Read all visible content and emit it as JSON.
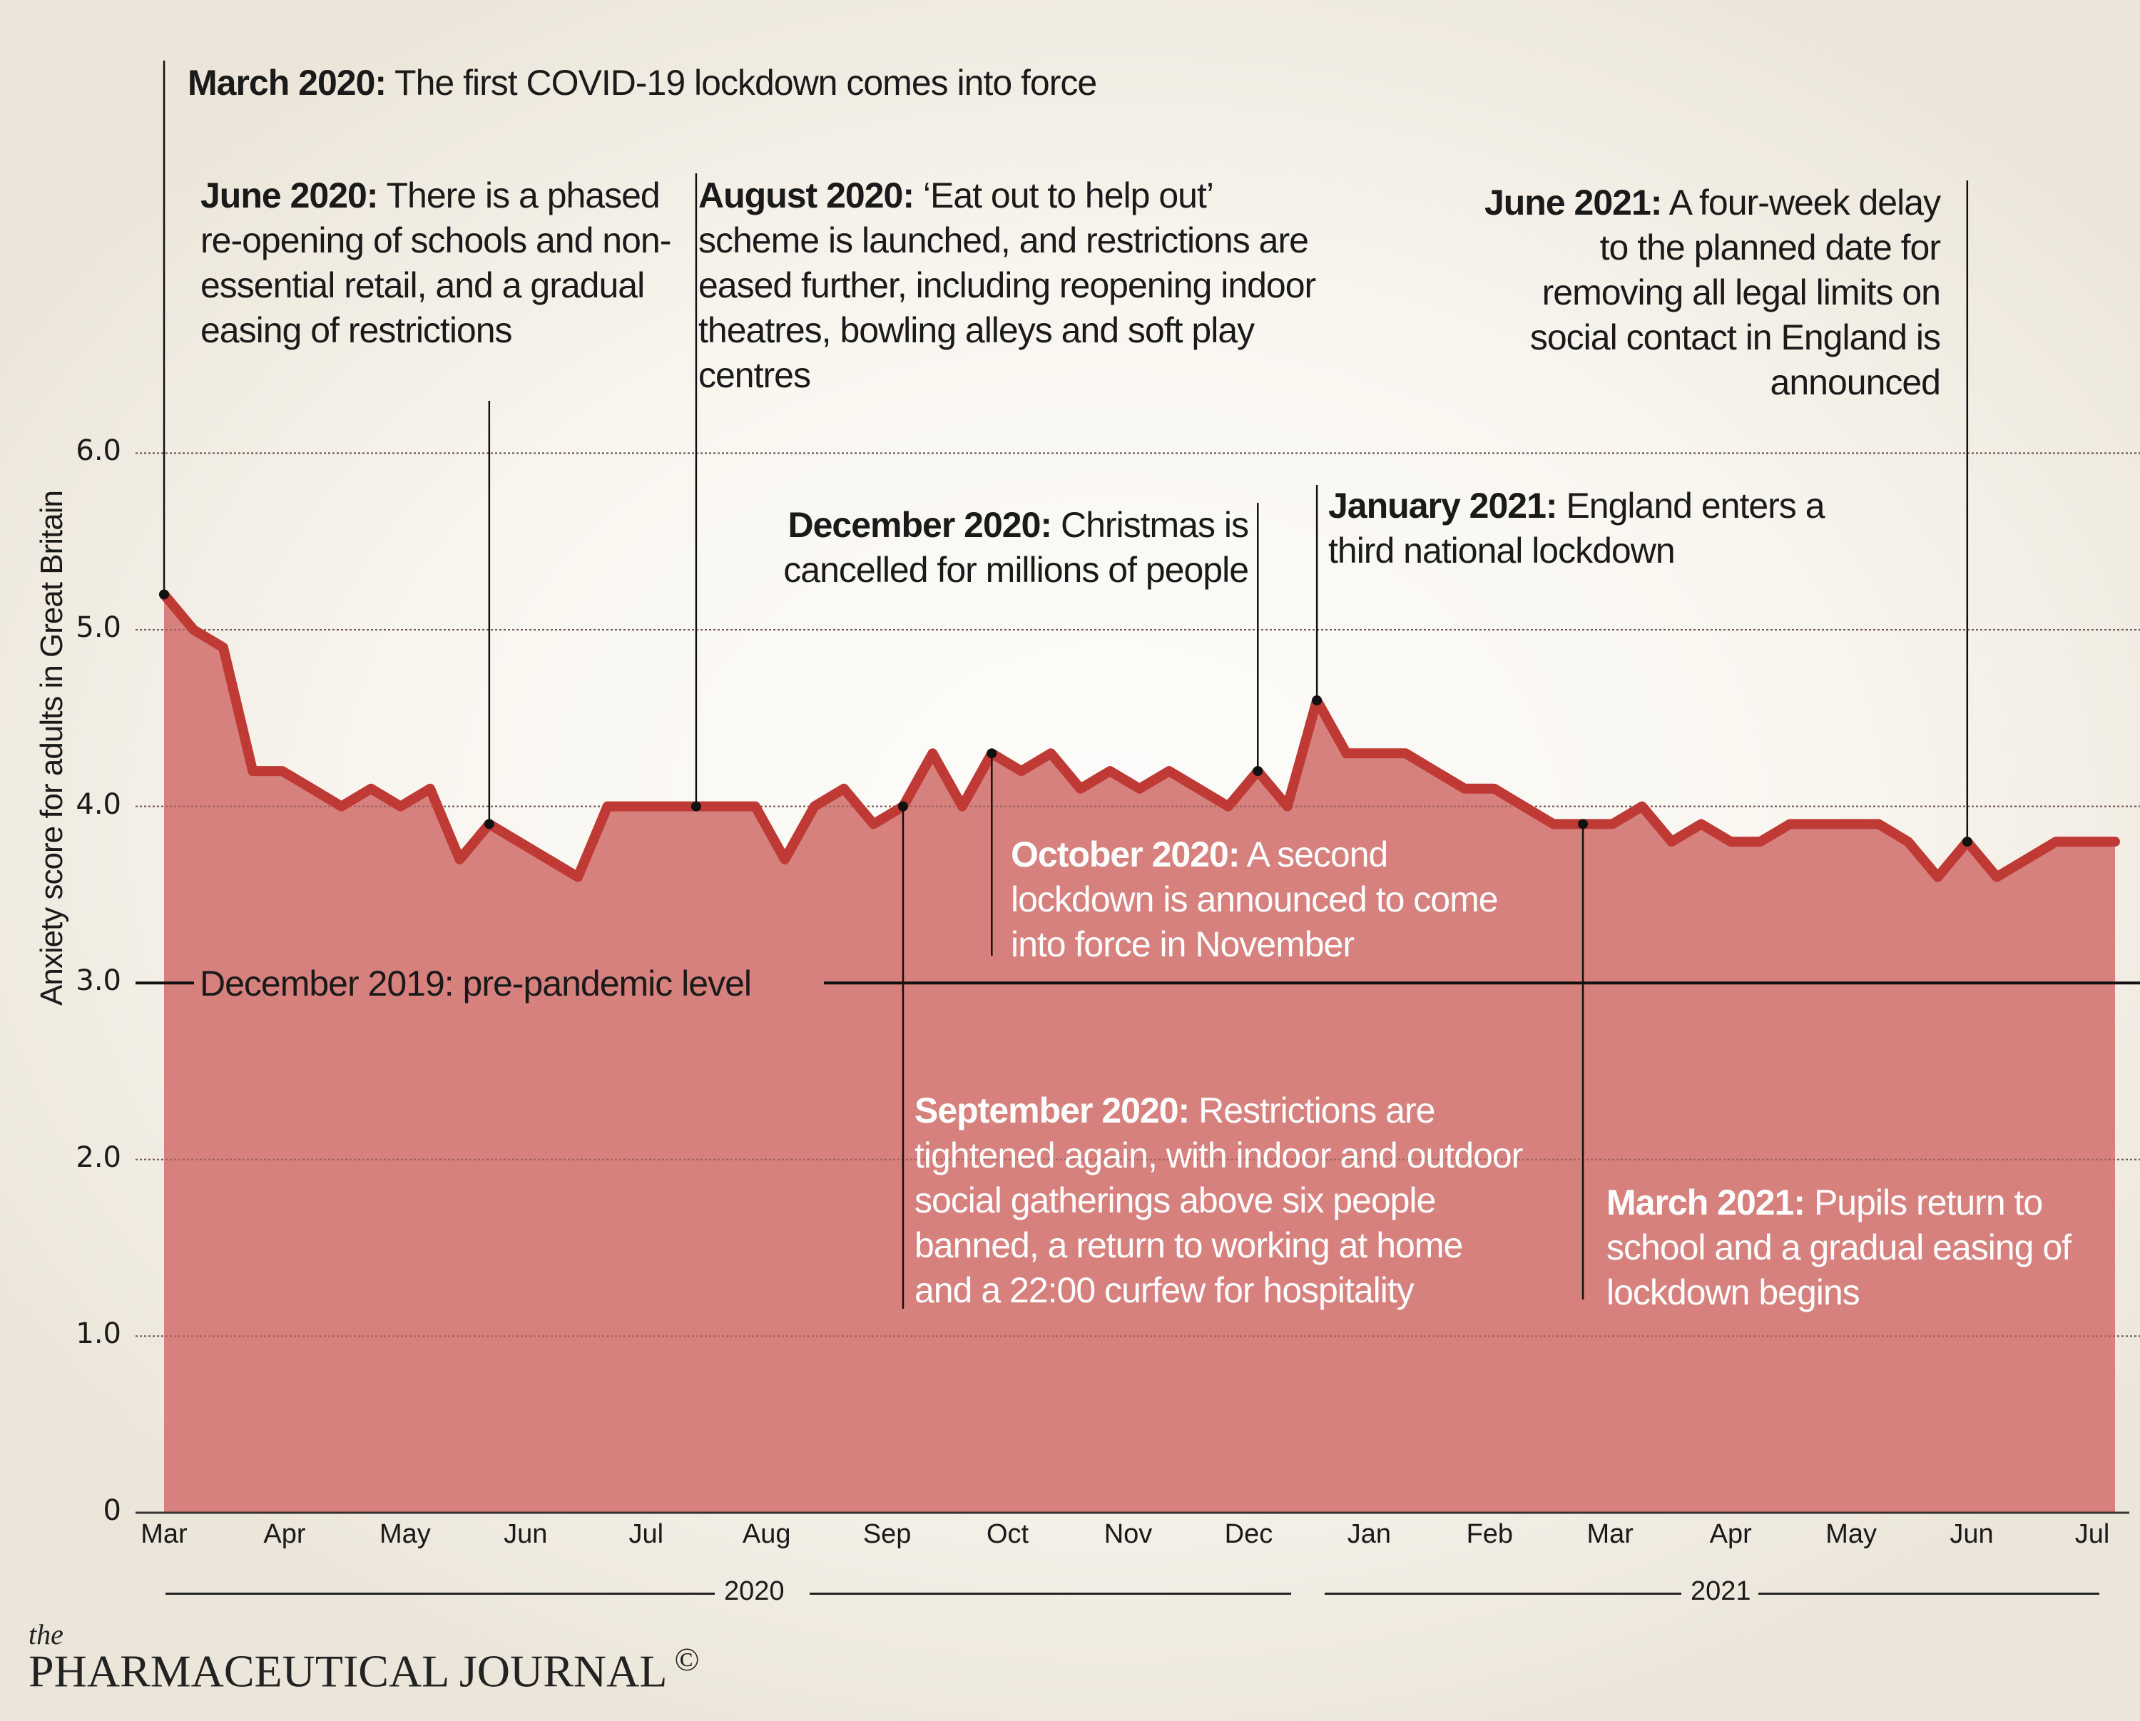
{
  "chart_data": {
    "type": "area",
    "title": "",
    "ylabel": "Anxiety score for adults in Great Britain",
    "xlabel": "",
    "ylim": [
      0,
      6.0
    ],
    "yticks": [
      "0",
      "1.0",
      "2.0",
      "3.0",
      "4.0",
      "5.0",
      "6.0"
    ],
    "grid": true,
    "xtick_labels": [
      "Mar",
      "Apr",
      "May",
      "Jun",
      "Jul",
      "Aug",
      "Sep",
      "Oct",
      "Nov",
      "Dec",
      "Jan",
      "Feb",
      "Mar",
      "Apr",
      "May",
      "Jun",
      "Jul"
    ],
    "years": [
      "2020",
      "2021"
    ],
    "series": [
      {
        "name": "Anxiety score",
        "color": "#bf3a35",
        "fill": "#d6817d",
        "frequency": "weekly",
        "start": "March 2020",
        "end": "July 2021",
        "values": [
          5.2,
          5.0,
          4.9,
          4.2,
          4.2,
          4.1,
          4.0,
          4.1,
          4.0,
          4.1,
          3.7,
          3.9,
          3.8,
          3.7,
          3.6,
          4.0,
          4.0,
          4.0,
          4.0,
          4.0,
          4.0,
          3.7,
          4.0,
          4.1,
          3.9,
          4.0,
          4.3,
          4.0,
          4.3,
          4.2,
          4.3,
          4.1,
          4.2,
          4.1,
          4.2,
          4.1,
          4.0,
          4.2,
          4.0,
          4.6,
          4.3,
          4.3,
          4.3,
          4.2,
          4.1,
          4.1,
          4.0,
          3.9,
          3.9,
          3.9,
          4.0,
          3.8,
          3.9,
          3.8,
          3.8,
          3.9,
          3.9,
          3.9,
          3.9,
          3.8,
          3.6,
          3.8,
          3.6,
          3.7,
          3.8,
          3.8,
          3.8
        ]
      }
    ],
    "reference_line": {
      "value": 3.0,
      "label": "December 2019: pre-pandemic level"
    },
    "annotations": [
      {
        "id": "mar2020",
        "week": 0,
        "bold": "March 2020:",
        "text": "The first COVID-19 lockdown comes into force",
        "lines": [
          "The first COVID-19 lockdown comes into force"
        ]
      },
      {
        "id": "jun2020",
        "week": 11,
        "bold": "June 2020:",
        "text": "There is a phased re-opening of schools and non-essential retail, and a gradual easing of restrictions",
        "lines": [
          "There is a",
          "phased re-opening of",
          "schools and non-essential",
          "retail, and a gradual",
          "easing of restrictions"
        ]
      },
      {
        "id": "aug2020",
        "week": 18,
        "bold": "August 2020:",
        "text": "‘Eat out to help out’ scheme is launched, and restrictions are eased further, including reopening indoor theatres, bowling alleys and soft play centres",
        "lines": [
          "‘Eat out to help out’",
          "scheme is launched, and restrictions",
          "are eased further, including",
          "reopening indoor theatres, bowling",
          "alleys and soft play centres"
        ]
      },
      {
        "id": "sep2020",
        "week": 25,
        "bold": "September 2020:",
        "text": "Restrictions are tightened again, with indoor and outdoor social gatherings above six people banned, a return to working at home and a 22:00 curfew for hospitality",
        "lines": [
          "Restrictions are",
          "tightened again, with indoor and",
          "outdoor social gatherings above",
          "six people banned, a return to",
          "working at home and a 22:00",
          "curfew for hospitality"
        ]
      },
      {
        "id": "oct2020",
        "week": 28,
        "bold": "October 2020:",
        "text": "A second lockdown is announced to come into force in November",
        "lines": [
          "A second",
          "lockdown is announced to",
          "come into force in November"
        ]
      },
      {
        "id": "dec2020",
        "week": 37,
        "bold": "December 2020:",
        "text": "Christmas is cancelled for millions of people",
        "lines": [
          "Christmas is",
          "cancelled for millions of people"
        ]
      },
      {
        "id": "jan2021",
        "week": 39,
        "bold": "January 2021:",
        "text": "England enters a third national lockdown",
        "lines": [
          "England enters",
          "a third national lockdown"
        ]
      },
      {
        "id": "mar2021",
        "week": 48,
        "bold": "March 2021:",
        "text": "Pupils return to school and a gradual easing of lockdown begins",
        "lines": [
          "Pupils return",
          "to school and a gradual",
          "easing of lockdown begins"
        ]
      },
      {
        "id": "jun2021",
        "week": 61,
        "bold": "June 2021:",
        "text": "A four-week delay to the planned date for removing all legal limits on social contact in England is announced",
        "lines": [
          "A four-week",
          "delay to the planned date",
          "for removing all legal limits",
          "on social contact in",
          "England is announced"
        ]
      }
    ]
  },
  "footer": {
    "logo_the": "the",
    "logo_name": "PHARMACEUTICAL JOURNAL",
    "copyright": "©"
  }
}
